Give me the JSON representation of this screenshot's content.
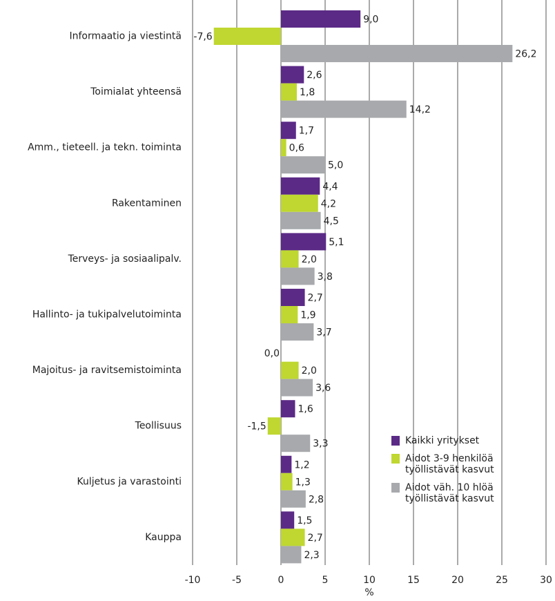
{
  "chart_data": {
    "type": "bar",
    "orientation": "horizontal",
    "categories": [
      "Informaatio ja viestintä",
      "Toimialat yhteensä",
      "Amm., tieteell. ja tekn. toiminta",
      "Rakentaminen",
      "Terveys- ja sosiaalipalv.",
      "Hallinto- ja tukipalvelutoiminta",
      "Majoitus- ja ravitsemistoiminta",
      "Teollisuus",
      "Kuljetus ja varastointi",
      "Kauppa"
    ],
    "series": [
      {
        "name": "Kaikki yritykset",
        "color": "#5b2a86",
        "values": [
          9.0,
          2.6,
          1.7,
          4.4,
          5.1,
          2.7,
          0.0,
          1.6,
          1.2,
          1.5
        ],
        "value_labels": [
          "9,0",
          "2,6",
          "1,7",
          "4,4",
          "5,1",
          "2,7",
          "0,0",
          "1,6",
          "1,2",
          "1,5"
        ]
      },
      {
        "name": "Aidot 3-9 henkilöä työllistävät kasvut",
        "color": "#bfd730",
        "values": [
          -7.6,
          1.8,
          0.6,
          4.2,
          2.0,
          1.9,
          2.0,
          -1.5,
          1.3,
          2.7
        ],
        "value_labels": [
          "-7,6",
          "1,8",
          "0,6",
          "4,2",
          "2,0",
          "1,9",
          "2,0",
          "-1,5",
          "1,3",
          "2,7"
        ]
      },
      {
        "name": "Aidot väh. 10 hlöä työllistävät kasvut",
        "color": "#a7a9ac",
        "values": [
          26.2,
          14.2,
          5.0,
          4.5,
          3.8,
          3.7,
          3.6,
          3.3,
          2.8,
          2.3
        ],
        "value_labels": [
          "26,2",
          "14,2",
          "5,0",
          "4,5",
          "3,8",
          "3,7",
          "3,6",
          "3,3",
          "2,8",
          "2,3"
        ]
      }
    ],
    "xlabel": "%",
    "xlim": [
      -10,
      30
    ],
    "xticks": [
      -10,
      -5,
      0,
      5,
      10,
      15,
      20,
      25,
      30
    ],
    "grid": true
  }
}
